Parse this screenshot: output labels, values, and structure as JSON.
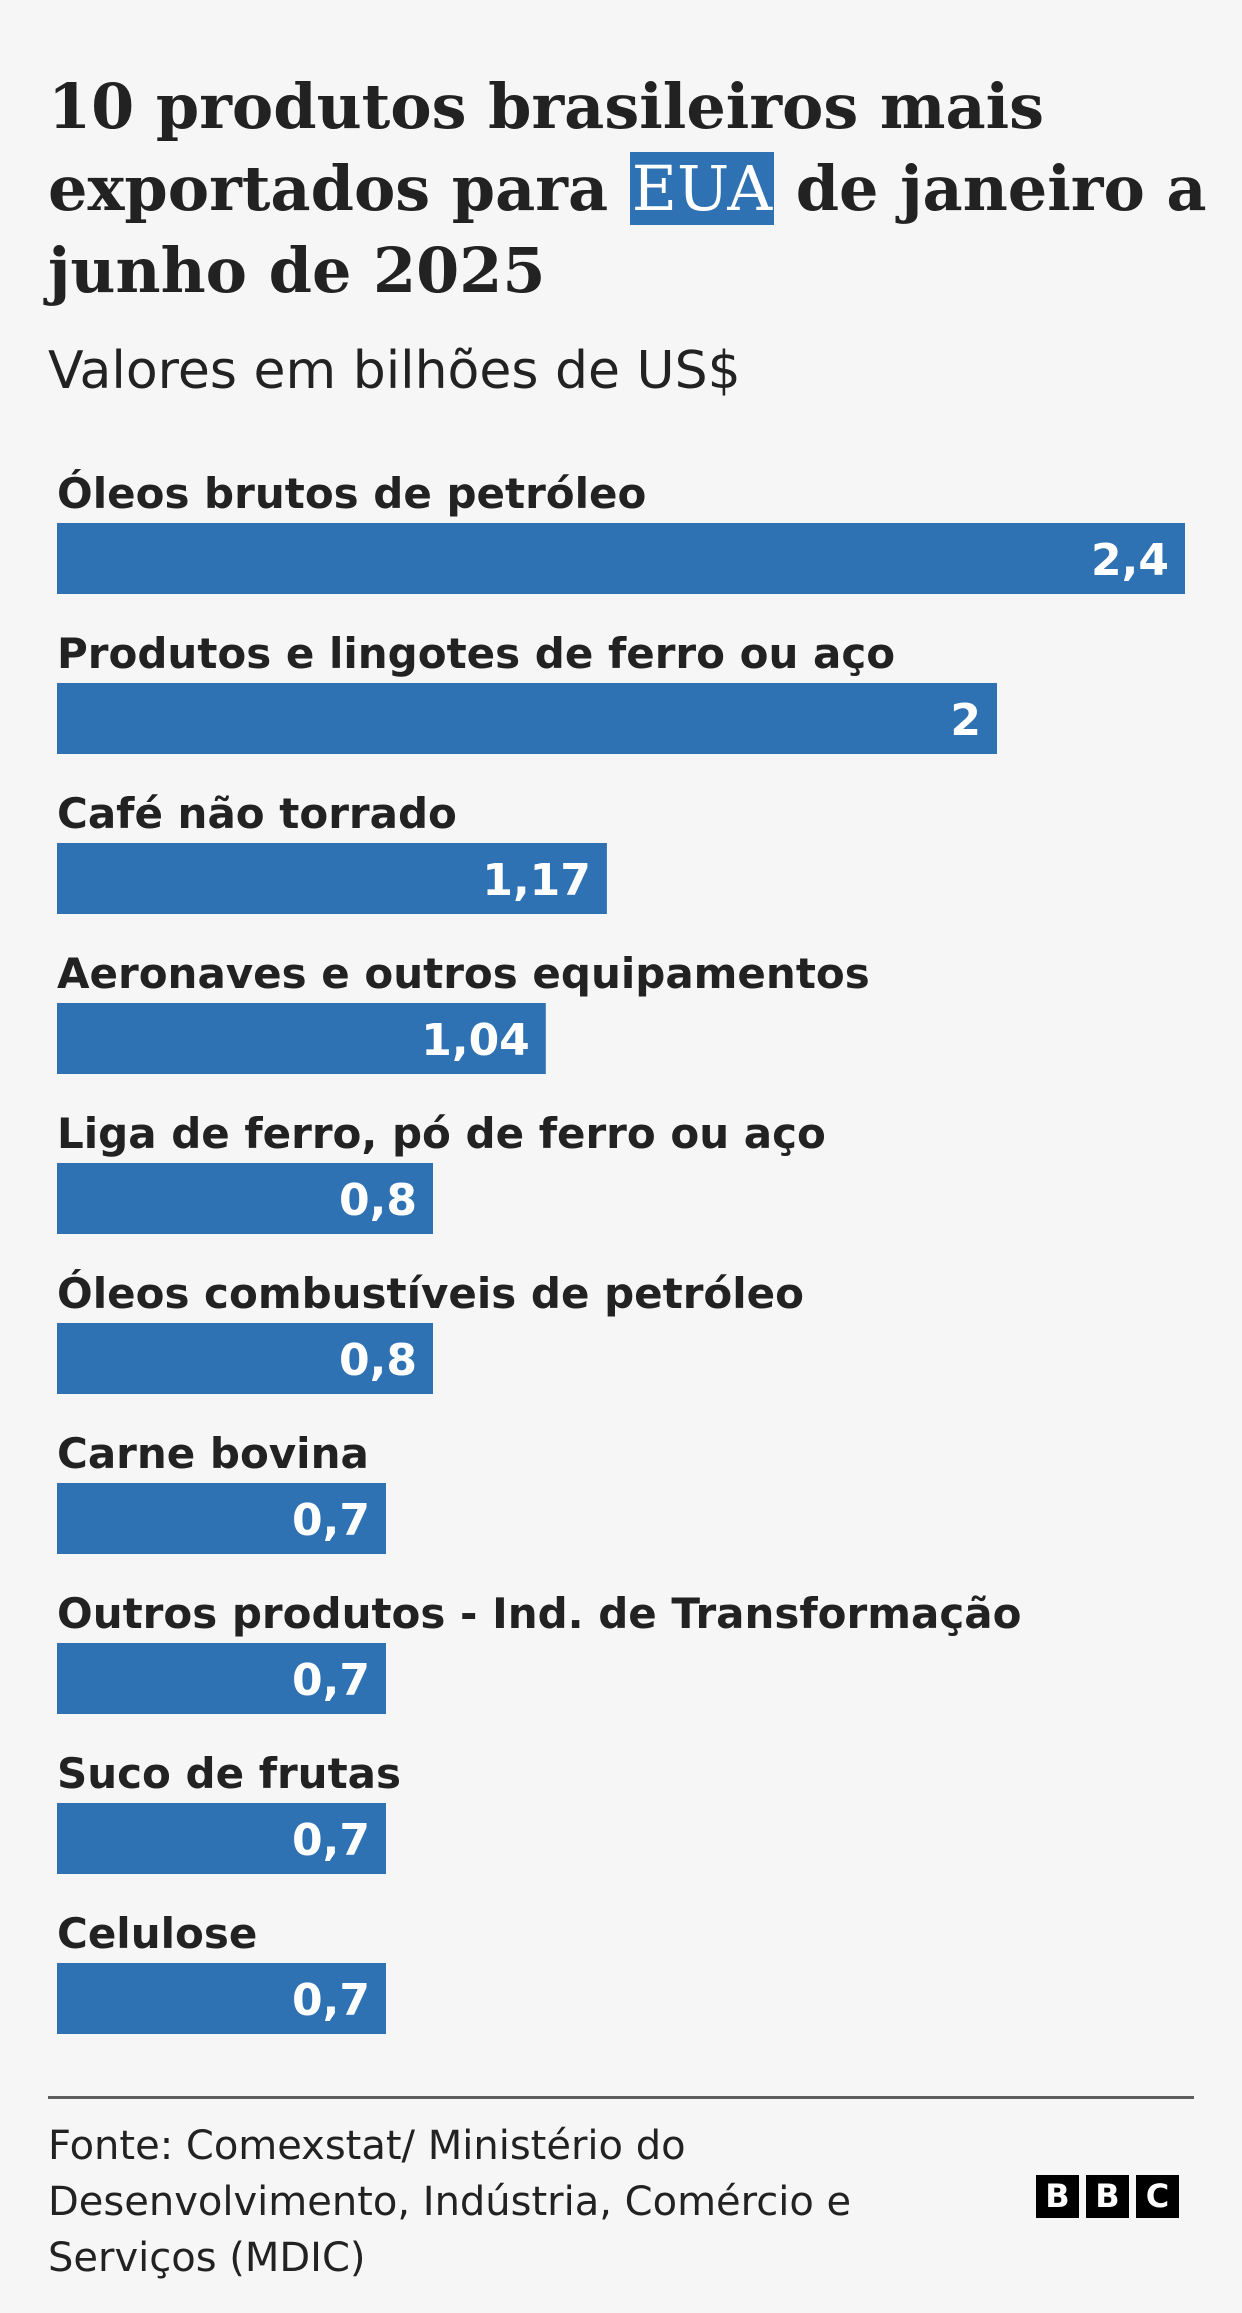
{
  "title": {
    "before": "10 produtos brasileiros mais exportados para ",
    "highlight": "EUA",
    "after": " de janeiro a junho de 2025"
  },
  "subtitle": "Valores em bilhões de US$",
  "colors": {
    "bar": "#2f72b3",
    "background": "#f6f6f6",
    "text": "#222222"
  },
  "chart_data": {
    "type": "bar",
    "orientation": "horizontal",
    "categories": [
      "Óleos brutos de petróleo",
      "Produtos e lingotes de ferro ou aço",
      "Café não torrado",
      "Aeronaves e outros equipamentos",
      "Liga de ferro, pó de ferro ou aço",
      "Óleos combustíveis de petróleo",
      "Carne bovina",
      "Outros produtos - Ind. de Transformação",
      "Suco de frutas",
      "Celulose"
    ],
    "values": [
      2.4,
      2,
      1.17,
      1.04,
      0.8,
      0.8,
      0.7,
      0.7,
      0.7,
      0.7
    ],
    "value_labels": [
      "2,4",
      "2",
      "1,17",
      "1,04",
      "0,8",
      "0,8",
      "0,7",
      "0,7",
      "0,7",
      "0,7"
    ],
    "xlim": [
      0,
      2.4
    ],
    "grid": false,
    "legend": "none"
  },
  "source": "Fonte: Comexstat/ Ministério do Desenvolvimento, Indústria, Comércio e Serviços (MDIC)",
  "logo": {
    "letters": [
      "B",
      "B",
      "C"
    ]
  }
}
